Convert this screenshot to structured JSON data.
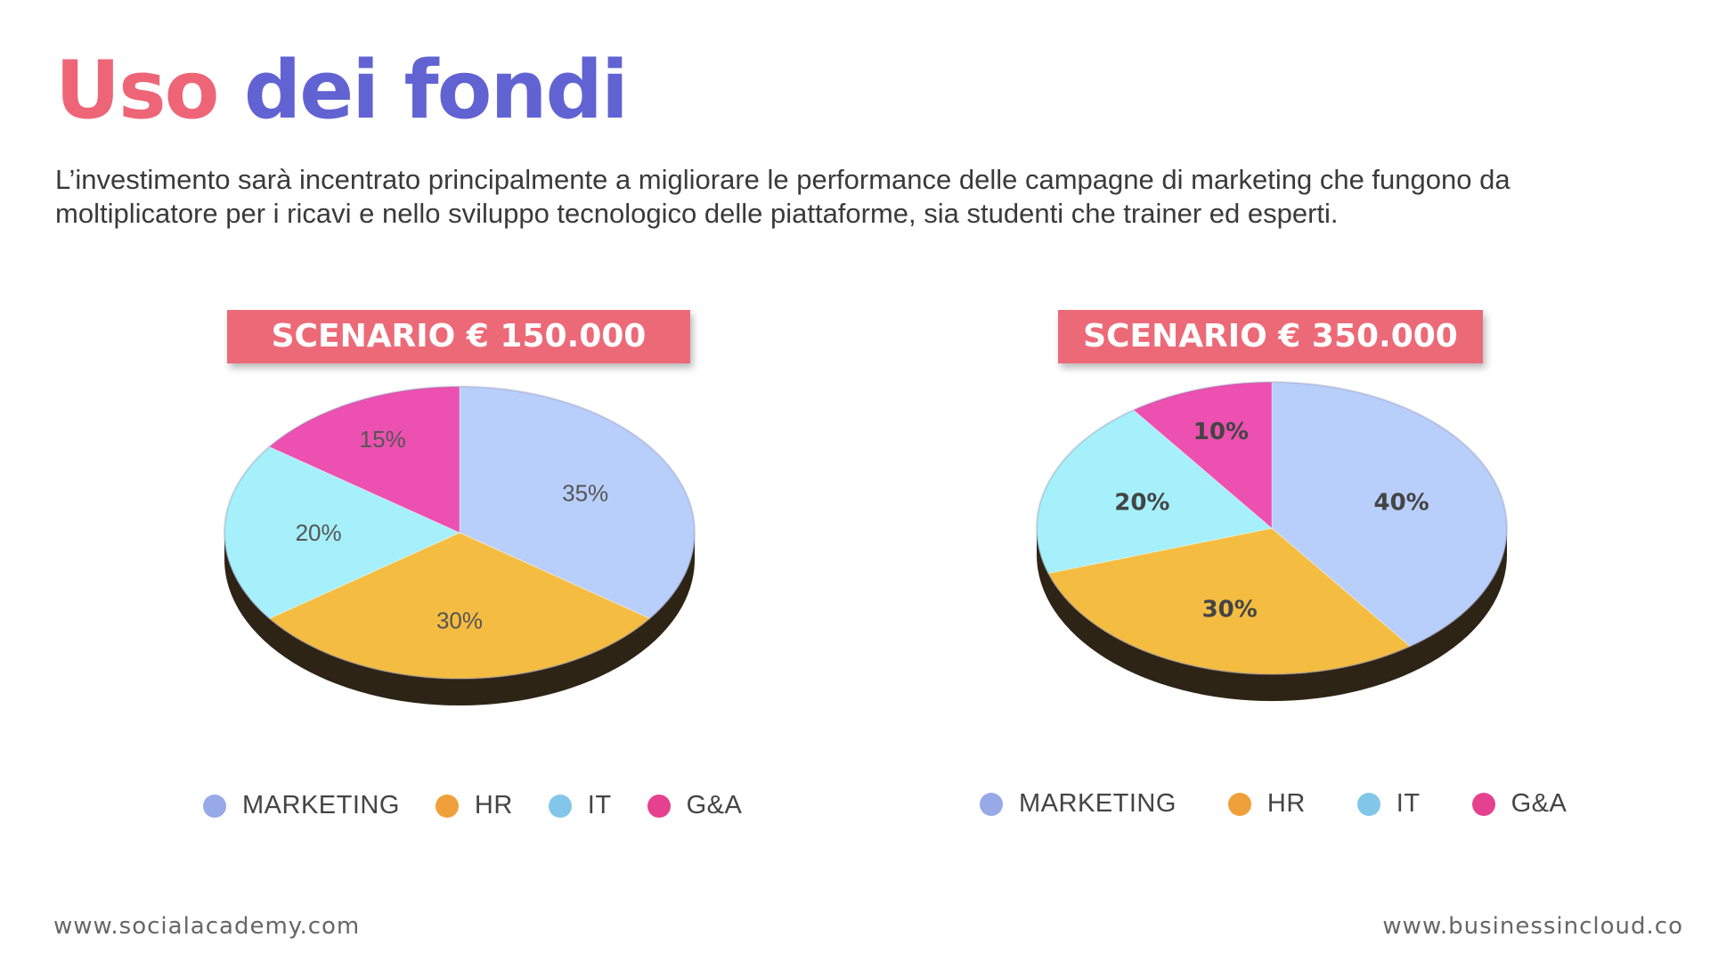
{
  "header": {
    "title_part1": "Uso",
    "title_part2": "dei fondi",
    "description": "L’investimento sarà incentrato principalmente a migliorare le performance delle campagne di marketing che fungono da moltiplicatore per i ricavi e nello sviluppo tecnologico delle piattaforme, sia studenti che trainer ed esperti."
  },
  "colors": {
    "title_accent": "#ee6577",
    "title_main": "#6163d2",
    "badge": "#ec6a78",
    "slices": {
      "MARKETING": "#b9cffb",
      "HR": "#f4bd42",
      "IT": "#a5f0fb",
      "G&A": "#ec50b0"
    },
    "legend": {
      "MARKETING": "#97a9e6",
      "HR": "#f0a03a",
      "IT": "#82c7e9",
      "G&A": "#e5418f"
    }
  },
  "chart_data": [
    {
      "type": "pie",
      "title": "SCENARIO € 150.000",
      "categories": [
        "MARKETING",
        "HR",
        "IT",
        "G&A"
      ],
      "values": [
        35,
        30,
        20,
        15
      ],
      "data_labels": [
        "35%",
        "30%",
        "20%",
        "15%"
      ],
      "legend_position": "bottom"
    },
    {
      "type": "pie",
      "title": "SCENARIO € 350.000",
      "categories": [
        "MARKETING",
        "HR",
        "IT",
        "G&A"
      ],
      "values": [
        40,
        30,
        20,
        10
      ],
      "data_labels": [
        "40%",
        "30%",
        "20%",
        "10%"
      ],
      "legend_position": "bottom"
    }
  ],
  "footer": {
    "left": "www.socialacademy.com",
    "right": "www.businessincloud.co"
  }
}
